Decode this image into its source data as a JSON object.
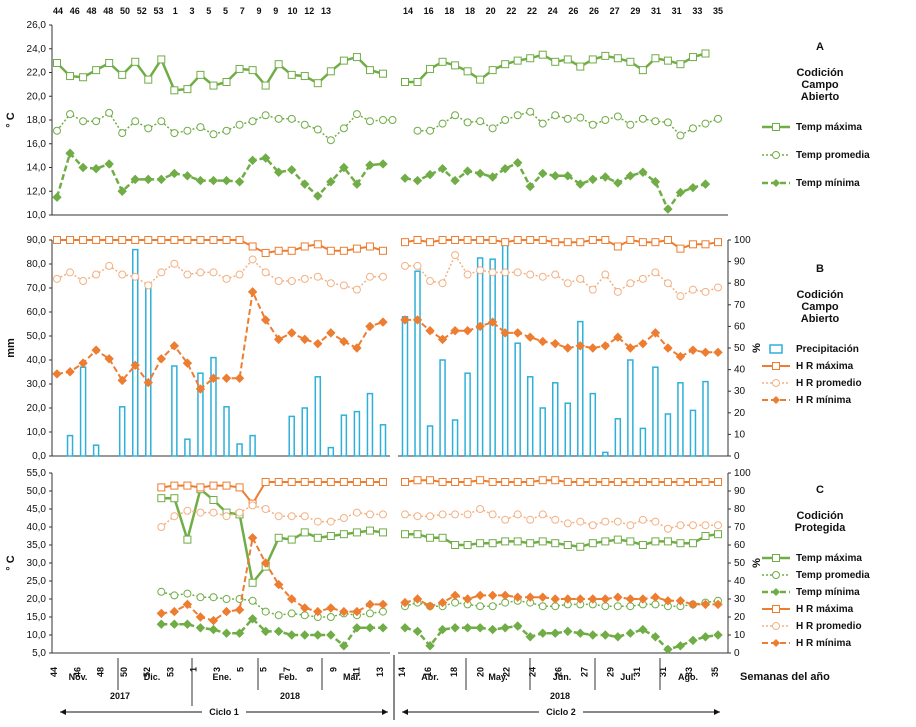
{
  "colors": {
    "green": "#70ad47",
    "orange": "#ed7d31",
    "orange_light": "#f4b183",
    "blue": "#2eb0d8",
    "axis": "#333333"
  },
  "x_axis": {
    "label": "Semanas del año",
    "top_weeks_c1": [
      "44",
      "46",
      "48",
      "48",
      "50",
      "52",
      "53",
      "1",
      "3",
      "5",
      "5",
      "7",
      "9",
      "9",
      "10",
      "12",
      "13"
    ],
    "top_weeks_c2": [
      "14",
      "16",
      "18",
      "18",
      "20",
      "22",
      "22",
      "24",
      "26",
      "26",
      "27",
      "29",
      "31",
      "31",
      "33",
      "35"
    ],
    "bottom_weeks": [
      "44",
      "46",
      "48",
      "50",
      "52",
      "53",
      "1",
      "3",
      "5",
      "5",
      "7",
      "9",
      "9",
      "11",
      "13",
      "14",
      "16",
      "18",
      "20",
      "22",
      "24",
      "26",
      "27",
      "29",
      "31",
      "31",
      "33",
      "35"
    ],
    "months": [
      "Nov.",
      "Dic.",
      "Ene.",
      "Feb.",
      "Mar.",
      "Abr.",
      "May.",
      "Jun.",
      "Jul.",
      "Ago."
    ],
    "years": [
      "2017",
      "2018",
      "2018"
    ],
    "cycles": [
      "Ciclo 1",
      "Ciclo 2"
    ]
  },
  "chart_data": [
    {
      "type": "line",
      "panel": "A",
      "title": "Codición Campo Abierto",
      "ylabel": "° C",
      "ylim": [
        10,
        26
      ],
      "yticks": [
        "10,0",
        "12,0",
        "14,0",
        "16,0",
        "18,0",
        "20,0",
        "22,0",
        "24,0",
        "26,0"
      ],
      "series": [
        {
          "name": "Temp máxima",
          "values": [
            22.8,
            21.7,
            21.6,
            22.2,
            22.8,
            21.8,
            22.9,
            21.4,
            23.1,
            20.5,
            20.6,
            21.8,
            20.9,
            21.2,
            22.3,
            22.2,
            20.9,
            22.7,
            21.8,
            21.7,
            21.1,
            22.1,
            23.0,
            23.3,
            22.2,
            21.9,
            null,
            21.2,
            21.2,
            22.3,
            22.9,
            22.6,
            22.1,
            21.4,
            22.2,
            22.7,
            23.0,
            23.2,
            23.5,
            22.9,
            23.1,
            22.5,
            23.1,
            23.4,
            23.2,
            22.9,
            22.2,
            23.2,
            23.0,
            22.7,
            23.3,
            23.6
          ]
        },
        {
          "name": "Temp promedia",
          "values": [
            17.1,
            18.5,
            17.9,
            17.9,
            18.6,
            16.9,
            17.9,
            17.3,
            17.9,
            16.9,
            17.1,
            17.4,
            16.8,
            17.1,
            17.6,
            17.9,
            18.4,
            18.1,
            18.1,
            17.6,
            17.2,
            16.3,
            17.3,
            18.5,
            17.9,
            18.0,
            18.0,
            null,
            17.1,
            17.1,
            17.7,
            18.4,
            17.8,
            17.9,
            17.3,
            18.0,
            18.4,
            18.7,
            17.7,
            18.4,
            18.1,
            18.2,
            17.6,
            18.0,
            18.3,
            17.6,
            18.1,
            17.9,
            17.8,
            16.7,
            17.3,
            17.7,
            18.1
          ]
        },
        {
          "name": "Temp mínima",
          "values": [
            11.5,
            15.2,
            14.0,
            13.9,
            14.3,
            12.0,
            13.0,
            13.0,
            13.0,
            13.5,
            13.3,
            12.9,
            12.9,
            12.9,
            12.8,
            14.6,
            14.8,
            13.6,
            13.8,
            12.6,
            11.6,
            12.8,
            14.0,
            12.6,
            14.2,
            14.3,
            null,
            13.1,
            12.9,
            13.4,
            13.9,
            12.9,
            13.7,
            13.5,
            13.2,
            13.9,
            14.4,
            12.4,
            13.5,
            13.3,
            13.3,
            12.6,
            13.0,
            13.2,
            12.7,
            13.3,
            13.6,
            12.8,
            10.5,
            11.9,
            12.3,
            12.6
          ]
        }
      ]
    },
    {
      "type": "bar+line",
      "panel": "B",
      "title": "Codición Campo Abierto",
      "ylabel": "mm",
      "y2label": "%",
      "ylim": [
        0,
        90
      ],
      "y2lim": [
        0,
        100
      ],
      "yticks": [
        "0,0",
        "10,0",
        "20,0",
        "30,0",
        "40,0",
        "50,0",
        "60,0",
        "70,0",
        "80,0",
        "90,0"
      ],
      "y2ticks": [
        "0",
        "10",
        "20",
        "30",
        "40",
        "50",
        "60",
        "70",
        "80",
        "90",
        "100"
      ],
      "bars": {
        "name": "Precipitación",
        "values": [
          null,
          8.5,
          37,
          4.5,
          0,
          20.5,
          86,
          70,
          0,
          37.5,
          7,
          34.5,
          41,
          20.5,
          5,
          8.5,
          0,
          0,
          16.5,
          20,
          33,
          3.5,
          17,
          18.5,
          26,
          13,
          null,
          58,
          77,
          12.5,
          40,
          15,
          34.5,
          82.5,
          82,
          88,
          47,
          33,
          20,
          30.5,
          22,
          56,
          26,
          1.5,
          15.5,
          40,
          11.5,
          37,
          17.5,
          30.5,
          19,
          31
        ]
      },
      "series": [
        {
          "name": "H R máxima",
          "values": [
            100,
            100,
            100,
            100,
            100,
            100,
            100,
            100,
            100,
            100,
            100,
            100,
            100,
            100,
            100,
            97,
            94,
            95,
            95,
            97,
            98,
            95,
            95,
            96,
            97,
            95,
            null,
            99,
            100,
            99,
            100,
            100,
            100,
            100,
            100,
            99,
            100,
            100,
            100,
            99,
            99,
            99,
            100,
            100,
            97,
            100,
            99,
            99,
            100,
            96,
            98,
            98,
            99
          ]
        },
        {
          "name": "H R promedio",
          "values": [
            82,
            85,
            81,
            84,
            88,
            84,
            83,
            79,
            85,
            89,
            84,
            85,
            85,
            82,
            84,
            91,
            85,
            81,
            81,
            82,
            83,
            80,
            79,
            77,
            83,
            83,
            null,
            88,
            88,
            81,
            80,
            93,
            84,
            86,
            85,
            85,
            85,
            84,
            83,
            84,
            80,
            82,
            77,
            84,
            76,
            80,
            82,
            85,
            80,
            74,
            77,
            76,
            78
          ]
        },
        {
          "name": "H R mínima",
          "values": [
            38,
            39,
            43,
            49,
            45,
            35,
            42,
            34,
            45,
            51,
            43,
            31,
            36,
            36,
            36,
            76,
            63,
            54,
            57,
            54,
            52,
            57,
            53,
            50,
            60,
            62,
            null,
            63,
            63,
            58,
            54,
            58,
            58,
            60,
            62,
            57,
            57,
            55,
            53,
            52,
            50,
            51,
            50,
            51,
            55,
            50,
            52,
            57,
            50,
            46,
            49,
            48,
            48
          ]
        }
      ]
    },
    {
      "type": "line",
      "panel": "C",
      "title": "Codición Protegida",
      "ylabel": "° C",
      "y2label": "%",
      "ylim": [
        5,
        55
      ],
      "y2lim": [
        0,
        100
      ],
      "yticks": [
        "5,0",
        "10,0",
        "15,0",
        "20,0",
        "25,0",
        "30,0",
        "35,0",
        "40,0",
        "45,0",
        "50,0",
        "55,0"
      ],
      "y2ticks": [
        "0",
        "10",
        "20",
        "30",
        "40",
        "50",
        "60",
        "70",
        "80",
        "90",
        "100"
      ],
      "series": [
        {
          "axis": "left",
          "name": "Temp máxima",
          "values": [
            null,
            null,
            null,
            null,
            null,
            null,
            null,
            null,
            48,
            48,
            36.5,
            50.5,
            47.5,
            44,
            43.5,
            24.5,
            29,
            37,
            36.5,
            38.5,
            37,
            37.5,
            38,
            38.5,
            39,
            38.5,
            null,
            38,
            38,
            37,
            37,
            35,
            35,
            35.5,
            35.5,
            36,
            36,
            35.5,
            36,
            35.5,
            35,
            34.5,
            35.5,
            36,
            36.5,
            36,
            35,
            36,
            36,
            35.5,
            35.5,
            37.5,
            38
          ]
        },
        {
          "axis": "left",
          "name": "Temp promedia",
          "values": [
            null,
            null,
            null,
            null,
            null,
            null,
            null,
            null,
            22,
            21,
            21.5,
            20.5,
            20.5,
            20,
            20,
            19.5,
            16.5,
            15.5,
            16,
            15.5,
            15,
            15,
            16,
            15.5,
            16,
            16.5,
            null,
            18,
            19,
            18,
            18,
            19,
            18.5,
            18,
            18,
            19,
            19.5,
            19,
            18,
            18,
            18.5,
            18.5,
            18.5,
            18,
            18,
            18,
            18.5,
            18.5,
            18,
            18,
            18.5,
            19,
            19.5
          ]
        },
        {
          "axis": "left",
          "name": "Temp mínima",
          "values": [
            null,
            null,
            null,
            null,
            null,
            null,
            null,
            null,
            13,
            13,
            13,
            12,
            11.5,
            10.5,
            10.5,
            14.5,
            11,
            11,
            10,
            10,
            10,
            10,
            7,
            12,
            12,
            12,
            null,
            12,
            11,
            7,
            11.5,
            12,
            12,
            12,
            11.5,
            12,
            12.5,
            9.5,
            10.5,
            10.5,
            11,
            10.5,
            10,
            10,
            9.5,
            10.5,
            11.5,
            9.5,
            6,
            7,
            8.5,
            9.5,
            10
          ]
        },
        {
          "axis": "right",
          "name": "H R máxima",
          "values": [
            null,
            null,
            null,
            null,
            null,
            null,
            null,
            null,
            92,
            93,
            93,
            92,
            93,
            93,
            92,
            83,
            95,
            95,
            95,
            95,
            95,
            95,
            95,
            95,
            95,
            95,
            null,
            95,
            96,
            96,
            95,
            95,
            95,
            96,
            95,
            95,
            95,
            95,
            96,
            96,
            95,
            95,
            95,
            95,
            95,
            95,
            95,
            95,
            95,
            95,
            95,
            95,
            95
          ]
        },
        {
          "axis": "right",
          "name": "H R promedio",
          "values": [
            null,
            null,
            null,
            null,
            null,
            null,
            null,
            null,
            70,
            76,
            79,
            78,
            78,
            76,
            78,
            82,
            80,
            76,
            76,
            76,
            73,
            73,
            75,
            78,
            77,
            77,
            null,
            77,
            76,
            76,
            77,
            77,
            77,
            80,
            77,
            74,
            77,
            74,
            77,
            74,
            72,
            73,
            71,
            73,
            73,
            71,
            74,
            73,
            69,
            71,
            71,
            71,
            71
          ]
        },
        {
          "axis": "right",
          "name": "H R mínima",
          "values": [
            null,
            null,
            null,
            null,
            null,
            null,
            null,
            null,
            22,
            23,
            27,
            20,
            18,
            23,
            24,
            64,
            50,
            38,
            30,
            25,
            23,
            25,
            23,
            23,
            27,
            27,
            null,
            28,
            30,
            26,
            28,
            32,
            30,
            32,
            32,
            32,
            31,
            31,
            31,
            30,
            30,
            30,
            30,
            30,
            31,
            30,
            30,
            31,
            29,
            29,
            27,
            27,
            27
          ]
        }
      ]
    }
  ]
}
